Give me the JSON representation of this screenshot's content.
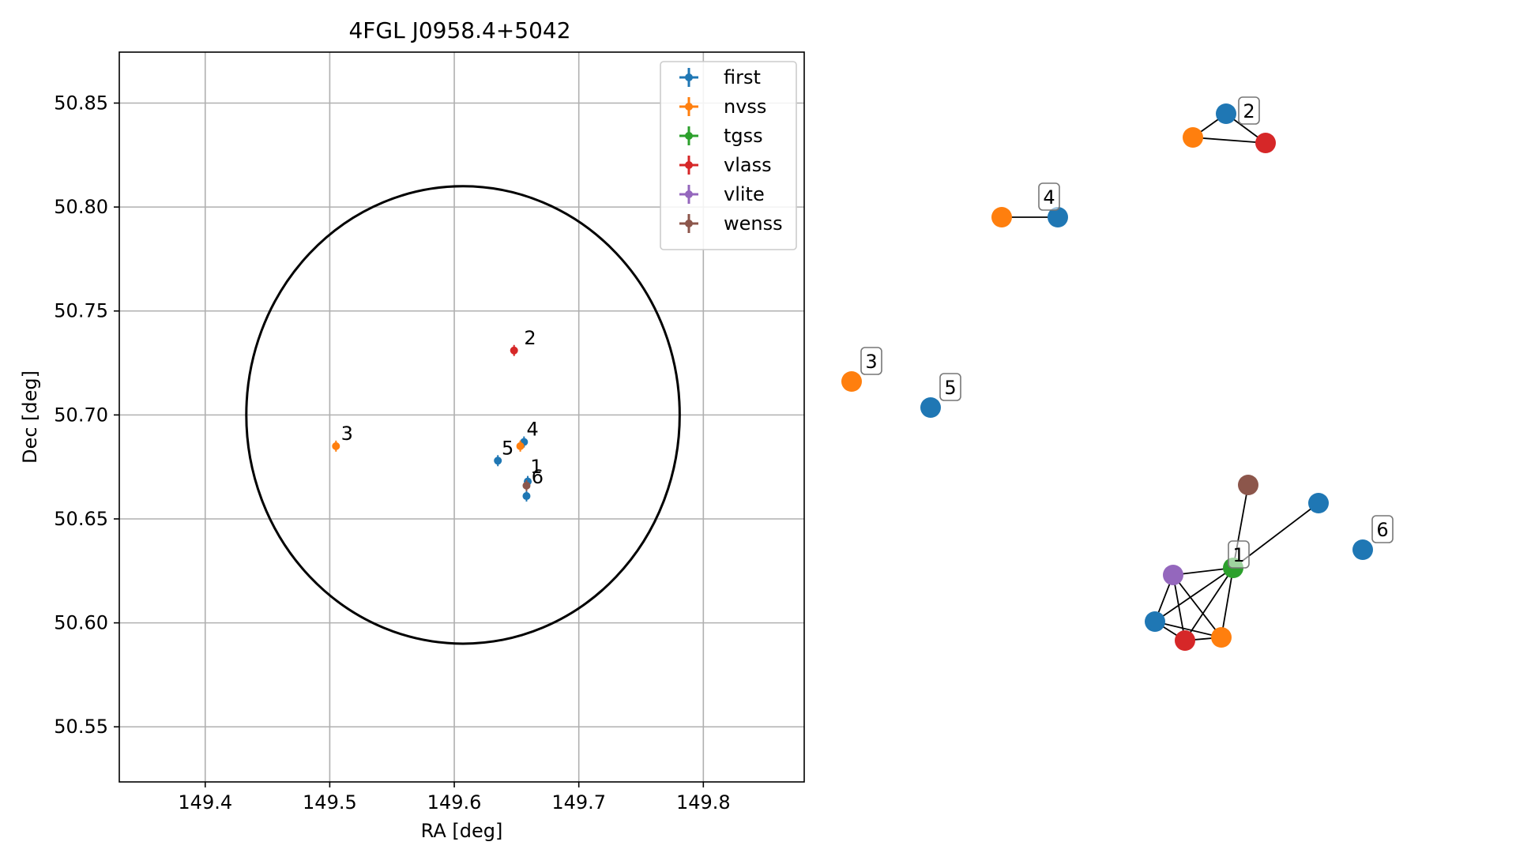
{
  "chart_data": [
    {
      "type": "scatter",
      "title": "4FGL J0958.4+5042",
      "xlabel": "RA [deg]",
      "ylabel": "Dec [deg]",
      "xlim": [
        149.331,
        149.881
      ],
      "ylim": [
        50.5235,
        50.8745
      ],
      "xticks": [
        149.4,
        149.5,
        149.6,
        149.7,
        149.8
      ],
      "xtick_labels": [
        "149.4",
        "149.5",
        "149.6",
        "149.7",
        "149.8"
      ],
      "yticks": [
        50.55,
        50.6,
        50.65,
        50.7,
        50.75,
        50.8,
        50.85
      ],
      "ytick_labels": [
        "50.55",
        "50.60",
        "50.65",
        "50.70",
        "50.75",
        "50.80",
        "50.85"
      ],
      "grid": true,
      "legend_position": "upper-right",
      "uncertainty_ellipse": {
        "center": [
          149.607,
          50.7
        ],
        "ra_semi_axis": 0.174,
        "dec_semi_axis": 0.11
      },
      "series": [
        {
          "name": "first",
          "color": "#1f77b4",
          "points": [
            [
              149.659,
              50.668
            ],
            [
              149.658,
              50.661
            ],
            [
              149.635,
              50.678
            ],
            [
              149.656,
              50.687
            ]
          ]
        },
        {
          "name": "nvss",
          "color": "#ff7f0e",
          "points": [
            [
              149.505,
              50.685
            ],
            [
              149.653,
              50.685
            ]
          ]
        },
        {
          "name": "tgss",
          "color": "#2ca02c",
          "points": []
        },
        {
          "name": "vlass",
          "color": "#d62728",
          "points": [
            [
              149.648,
              50.731
            ]
          ]
        },
        {
          "name": "vlite",
          "color": "#9467bd",
          "points": []
        },
        {
          "name": "wenss",
          "color": "#8c564b",
          "points": [
            [
              149.658,
              50.666
            ]
          ]
        }
      ],
      "annotations": [
        {
          "text": "1",
          "x": 149.661,
          "y": 50.672
        },
        {
          "text": "2",
          "x": 149.656,
          "y": 50.734
        },
        {
          "text": "3",
          "x": 149.509,
          "y": 50.688
        },
        {
          "text": "4",
          "x": 149.658,
          "y": 50.69
        },
        {
          "text": "5",
          "x": 149.638,
          "y": 50.681
        },
        {
          "text": "6",
          "x": 149.662,
          "y": 50.667
        }
      ]
    },
    {
      "type": "network",
      "nodes": [
        {
          "id": "n2_first",
          "color": "#1f77b4"
        },
        {
          "id": "n2_nvss",
          "color": "#ff7f0e"
        },
        {
          "id": "n2_vlass",
          "color": "#d62728"
        },
        {
          "id": "n4_nvss",
          "color": "#ff7f0e"
        },
        {
          "id": "n4_first",
          "color": "#1f77b4"
        },
        {
          "id": "n3_nvss",
          "color": "#ff7f0e"
        },
        {
          "id": "n5_first",
          "color": "#1f77b4"
        },
        {
          "id": "n1_wenss",
          "color": "#8c564b"
        },
        {
          "id": "n1_first_a",
          "color": "#1f77b4"
        },
        {
          "id": "n6_first",
          "color": "#1f77b4"
        },
        {
          "id": "n1_tgss",
          "color": "#2ca02c"
        },
        {
          "id": "n1_vlite",
          "color": "#9467bd"
        },
        {
          "id": "n1_first_b",
          "color": "#1f77b4"
        },
        {
          "id": "n1_vlass",
          "color": "#d62728"
        },
        {
          "id": "n1_nvss",
          "color": "#ff7f0e"
        }
      ],
      "edges": [
        [
          "n2_first",
          "n2_nvss"
        ],
        [
          "n2_first",
          "n2_vlass"
        ],
        [
          "n2_nvss",
          "n2_vlass"
        ],
        [
          "n4_nvss",
          "n4_first"
        ],
        [
          "n1_tgss",
          "n1_wenss"
        ],
        [
          "n1_tgss",
          "n1_first_a"
        ],
        [
          "n1_tgss",
          "n1_vlite"
        ],
        [
          "n1_tgss",
          "n1_first_b"
        ],
        [
          "n1_tgss",
          "n1_vlass"
        ],
        [
          "n1_tgss",
          "n1_nvss"
        ],
        [
          "n1_vlite",
          "n1_first_b"
        ],
        [
          "n1_vlite",
          "n1_vlass"
        ],
        [
          "n1_vlite",
          "n1_nvss"
        ],
        [
          "n1_first_b",
          "n1_vlass"
        ],
        [
          "n1_first_b",
          "n1_nvss"
        ],
        [
          "n1_vlass",
          "n1_nvss"
        ]
      ],
      "labels": [
        {
          "text": "1",
          "node": "n1_tgss"
        },
        {
          "text": "2",
          "node": "n2_first"
        },
        {
          "text": "3",
          "node": "n3_nvss"
        },
        {
          "text": "4",
          "node": "n4_first"
        },
        {
          "text": "5",
          "node": "n5_first"
        },
        {
          "text": "6",
          "node": "n6_first"
        }
      ]
    }
  ]
}
